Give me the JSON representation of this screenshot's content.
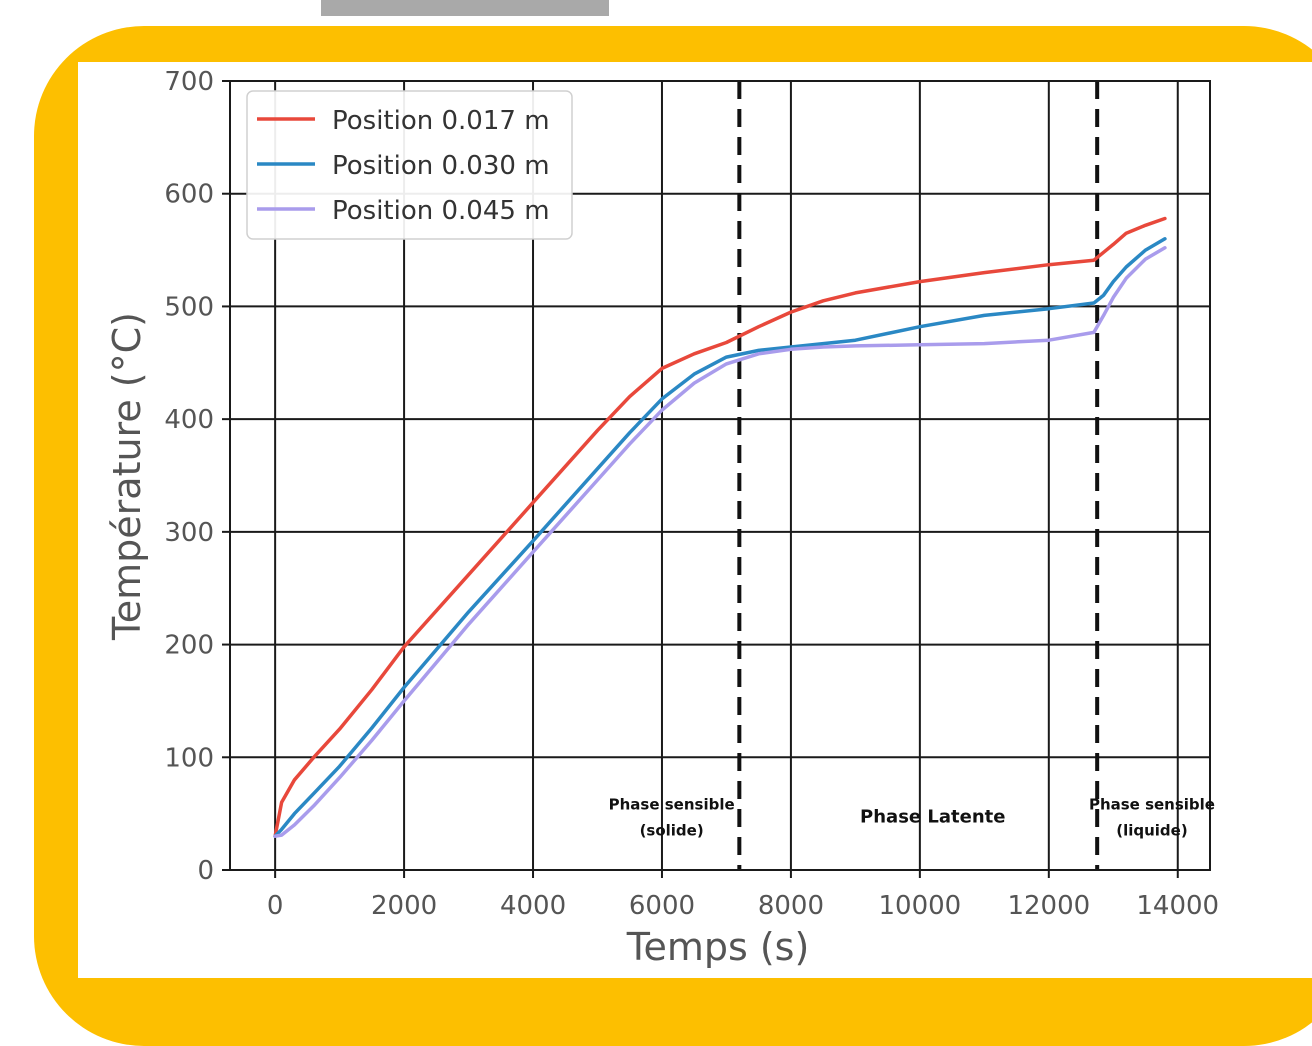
{
  "colors": {
    "frame_yellow": "#fdbf00",
    "top_bar_gray": "#a9a9a9",
    "series_red": "#e8483b",
    "series_blue": "#2a88c4",
    "series_purple": "#a99cec",
    "grid": "#1a1a1a",
    "tick_text": "#555555"
  },
  "chart_data": {
    "type": "line",
    "title": "",
    "xlabel": "Temps (s)",
    "ylabel": "Température (°C)",
    "xlim": [
      -700,
      14500
    ],
    "ylim": [
      0,
      700
    ],
    "xticks": [
      0,
      2000,
      4000,
      6000,
      8000,
      10000,
      12000,
      14000
    ],
    "yticks": [
      0,
      100,
      200,
      300,
      400,
      500,
      600,
      700
    ],
    "xtick_labels": [
      "0",
      "2000",
      "4000",
      "6000",
      "8000",
      "10000",
      "12000",
      "14000"
    ],
    "ytick_labels": [
      "0",
      "100",
      "200",
      "300",
      "400",
      "500",
      "600",
      "700"
    ],
    "grid": true,
    "legend_position": "top-left",
    "series": [
      {
        "name": "Position 0.017 m",
        "color": "#e8483b",
        "x": [
          0,
          100,
          300,
          600,
          1000,
          1500,
          2000,
          3000,
          4000,
          5000,
          5500,
          6000,
          6500,
          7000,
          7500,
          8000,
          8500,
          9000,
          10000,
          11000,
          12000,
          12700,
          12850,
          13000,
          13200,
          13500,
          13800
        ],
        "y": [
          30,
          60,
          80,
          100,
          125,
          160,
          198,
          262,
          326,
          390,
          420,
          445,
          458,
          468,
          482,
          495,
          505,
          512,
          522,
          530,
          537,
          541,
          548,
          555,
          565,
          572,
          578
        ]
      },
      {
        "name": "Position 0.030 m",
        "color": "#2a88c4",
        "x": [
          0,
          100,
          300,
          600,
          1000,
          1500,
          2000,
          3000,
          4000,
          5000,
          5500,
          6000,
          6500,
          7000,
          7500,
          8000,
          8500,
          9000,
          10000,
          11000,
          12000,
          12700,
          12850,
          13000,
          13200,
          13500,
          13800
        ],
        "y": [
          30,
          36,
          50,
          68,
          92,
          126,
          162,
          229,
          292,
          356,
          388,
          418,
          440,
          455,
          461,
          464,
          467,
          470,
          482,
          492,
          498,
          503,
          510,
          522,
          535,
          550,
          560
        ]
      },
      {
        "name": "Position 0.045 m",
        "color": "#a99cec",
        "x": [
          0,
          100,
          300,
          600,
          1000,
          1500,
          2000,
          3000,
          4000,
          5000,
          5500,
          6000,
          6500,
          7000,
          7500,
          8000,
          8500,
          9000,
          10000,
          11000,
          12000,
          12700,
          12850,
          13000,
          13200,
          13500,
          13800
        ],
        "y": [
          30,
          31,
          40,
          57,
          82,
          115,
          150,
          218,
          282,
          346,
          378,
          408,
          432,
          449,
          458,
          462,
          464,
          465,
          466,
          467,
          470,
          477,
          492,
          508,
          525,
          542,
          552
        ]
      }
    ],
    "vertical_lines": [
      {
        "x": 7200,
        "style": "dashed"
      },
      {
        "x": 12750,
        "style": "dashed"
      }
    ],
    "annotations": [
      {
        "lines": [
          "Phase sensible",
          "(solide)"
        ],
        "x": 6150,
        "y": 42
      },
      {
        "lines": [
          "Phase Latente"
        ],
        "x": 10200,
        "y": 42
      },
      {
        "lines": [
          "Phase sensible",
          "(liquide)"
        ],
        "x": 13600,
        "y": 42
      }
    ]
  }
}
